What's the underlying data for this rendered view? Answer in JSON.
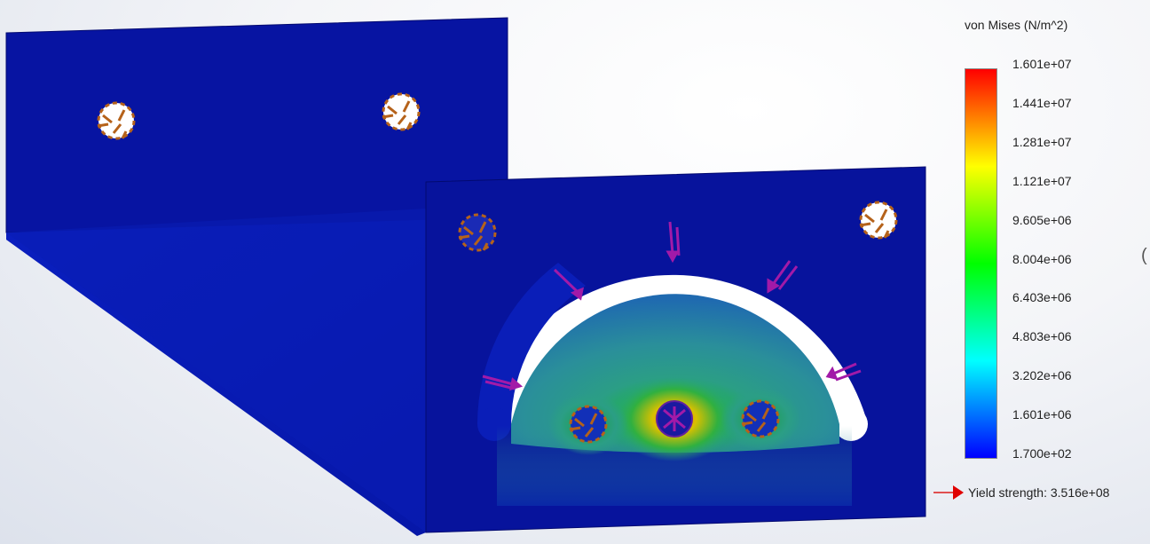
{
  "legend": {
    "title": "von Mises (N/m^2)",
    "ticks": [
      "1.601e+07",
      "1.441e+07",
      "1.281e+07",
      "1.121e+07",
      "9.605e+06",
      "8.004e+06",
      "6.403e+06",
      "4.803e+06",
      "3.202e+06",
      "1.601e+06",
      "1.700e+02"
    ],
    "colors": [
      "#ff0000",
      "#ff8000",
      "#ffff00",
      "#80ff00",
      "#00ff00",
      "#00ff80",
      "#00ffff",
      "#0080ff",
      "#0000ff"
    ],
    "yield_label": "Yield strength: 3.516e+08",
    "yield_color": "#e00000"
  },
  "model": {
    "plate_color": "#07139c",
    "fixture_icon": "fixed-geometry-icon",
    "load_icon": "applied-force-icon",
    "load_color": "#a21aa8",
    "fixture_color": "#b5621a",
    "stress_zone_colors": [
      "#e0d000",
      "#22b040",
      "#2a9f90",
      "#1a3bb8"
    ]
  },
  "edge_glyph": "("
}
